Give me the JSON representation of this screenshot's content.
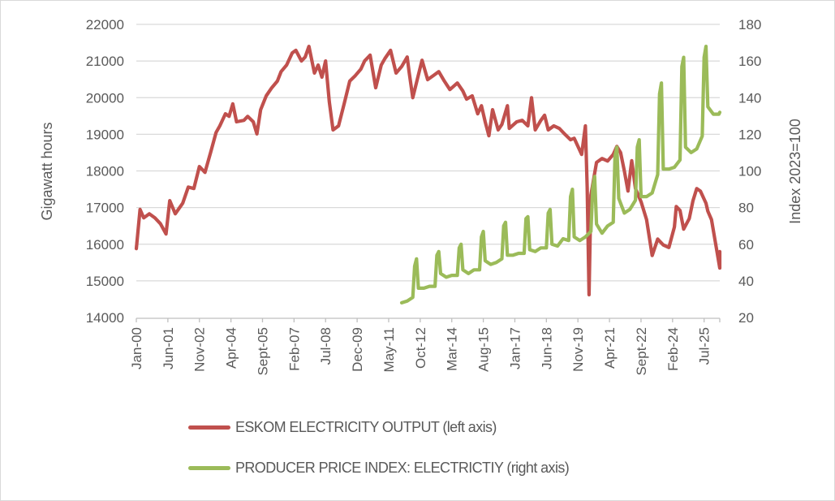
{
  "chart_data": {
    "type": "line",
    "title": "",
    "ylabel": "Gigawatt hours",
    "y2label": "Index 2023=100",
    "ylim": [
      14000,
      22000
    ],
    "y2lim": [
      20,
      180
    ],
    "yticks": [
      "14000",
      "15000",
      "16000",
      "17000",
      "18000",
      "19000",
      "20000",
      "21000",
      "22000"
    ],
    "y2ticks": [
      "20",
      "40",
      "60",
      "80",
      "100",
      "120",
      "140",
      "160",
      "180"
    ],
    "xlim": [
      "2000-01",
      "2025-11"
    ],
    "xticks": [
      {
        "date": "2000-01",
        "label": "Jan-00"
      },
      {
        "date": "2001-06",
        "label": "Jun-01"
      },
      {
        "date": "2002-11",
        "label": "Nov-02"
      },
      {
        "date": "2004-04",
        "label": "Apr-04"
      },
      {
        "date": "2005-09",
        "label": "Sept-05"
      },
      {
        "date": "2007-02",
        "label": "Feb-07"
      },
      {
        "date": "2008-07",
        "label": "Jul-08"
      },
      {
        "date": "2009-12",
        "label": "Dec-09"
      },
      {
        "date": "2011-05",
        "label": "May-11"
      },
      {
        "date": "2012-10",
        "label": "Oct-12"
      },
      {
        "date": "2014-03",
        "label": "Mar-14"
      },
      {
        "date": "2015-08",
        "label": "Aug-15"
      },
      {
        "date": "2017-01",
        "label": "Jan-17"
      },
      {
        "date": "2018-06",
        "label": "Jun-18"
      },
      {
        "date": "2019-11",
        "label": "Nov-19"
      },
      {
        "date": "2021-04",
        "label": "Apr-21"
      },
      {
        "date": "2022-09",
        "label": "Sept-22"
      },
      {
        "date": "2024-02",
        "label": "Feb-24"
      },
      {
        "date": "2025-07",
        "label": "Jul-25"
      }
    ],
    "grid": true,
    "legend_position": "bottom",
    "series": [
      {
        "name": "ESKOM ELECTRICITY OUTPUT (left axis)",
        "axis": "left",
        "color": "#c0504d",
        "points": [
          [
            "2000-01",
            15880
          ],
          [
            "2000-03",
            16950
          ],
          [
            "2000-05",
            16720
          ],
          [
            "2000-08",
            16830
          ],
          [
            "2000-11",
            16720
          ],
          [
            "2001-02",
            16560
          ],
          [
            "2001-05",
            16280
          ],
          [
            "2001-07",
            17190
          ],
          [
            "2001-10",
            16830
          ],
          [
            "2002-02",
            17120
          ],
          [
            "2002-05",
            17560
          ],
          [
            "2002-08",
            17520
          ],
          [
            "2002-11",
            18120
          ],
          [
            "2003-02",
            17960
          ],
          [
            "2003-05",
            18500
          ],
          [
            "2003-08",
            19050
          ],
          [
            "2003-10",
            19230
          ],
          [
            "2004-01",
            19560
          ],
          [
            "2004-03",
            19490
          ],
          [
            "2004-05",
            19830
          ],
          [
            "2004-07",
            19340
          ],
          [
            "2004-11",
            19380
          ],
          [
            "2005-01",
            19490
          ],
          [
            "2005-04",
            19340
          ],
          [
            "2005-06",
            19010
          ],
          [
            "2005-08",
            19670
          ],
          [
            "2005-11",
            20050
          ],
          [
            "2006-02",
            20270
          ],
          [
            "2006-05",
            20450
          ],
          [
            "2006-07",
            20710
          ],
          [
            "2006-10",
            20890
          ],
          [
            "2007-01",
            21220
          ],
          [
            "2007-03",
            21290
          ],
          [
            "2007-06",
            21000
          ],
          [
            "2007-08",
            21110
          ],
          [
            "2007-10",
            21400
          ],
          [
            "2008-01",
            20670
          ],
          [
            "2008-03",
            20890
          ],
          [
            "2008-05",
            20560
          ],
          [
            "2008-07",
            21000
          ],
          [
            "2008-09",
            19890
          ],
          [
            "2008-11",
            19120
          ],
          [
            "2009-02",
            19230
          ],
          [
            "2009-05",
            19830
          ],
          [
            "2009-08",
            20450
          ],
          [
            "2009-11",
            20600
          ],
          [
            "2010-02",
            20780
          ],
          [
            "2010-04",
            21000
          ],
          [
            "2010-07",
            21160
          ],
          [
            "2010-10",
            20270
          ],
          [
            "2011-01",
            20890
          ],
          [
            "2011-03",
            21070
          ],
          [
            "2011-06",
            21290
          ],
          [
            "2011-09",
            20670
          ],
          [
            "2011-12",
            20850
          ],
          [
            "2012-03",
            21110
          ],
          [
            "2012-04",
            20710
          ],
          [
            "2012-06",
            20000
          ],
          [
            "2012-09",
            20620
          ],
          [
            "2012-11",
            21020
          ],
          [
            "2013-02",
            20490
          ],
          [
            "2013-05",
            20600
          ],
          [
            "2013-08",
            20710
          ],
          [
            "2013-11",
            20450
          ],
          [
            "2014-02",
            20220
          ],
          [
            "2014-06",
            20400
          ],
          [
            "2014-09",
            20180
          ],
          [
            "2014-11",
            19960
          ],
          [
            "2015-02",
            20050
          ],
          [
            "2015-05",
            19560
          ],
          [
            "2015-07",
            19780
          ],
          [
            "2015-09",
            19340
          ],
          [
            "2015-11",
            18960
          ],
          [
            "2016-01",
            19670
          ],
          [
            "2016-04",
            19120
          ],
          [
            "2016-06",
            19270
          ],
          [
            "2016-09",
            19780
          ],
          [
            "2016-10",
            19160
          ],
          [
            "2017-02",
            19340
          ],
          [
            "2017-05",
            19380
          ],
          [
            "2017-08",
            19230
          ],
          [
            "2017-10",
            20000
          ],
          [
            "2017-12",
            19120
          ],
          [
            "2018-03",
            19380
          ],
          [
            "2018-05",
            19520
          ],
          [
            "2018-07",
            19120
          ],
          [
            "2018-10",
            19230
          ],
          [
            "2019-01",
            19160
          ],
          [
            "2019-04",
            19000
          ],
          [
            "2019-07",
            18850
          ],
          [
            "2019-09",
            18890
          ],
          [
            "2019-11",
            18670
          ],
          [
            "2020-01",
            18450
          ],
          [
            "2020-03",
            19230
          ],
          [
            "2020-04",
            17560
          ],
          [
            "2020-05",
            14620
          ],
          [
            "2020-06",
            17340
          ],
          [
            "2020-09",
            18230
          ],
          [
            "2020-12",
            18340
          ],
          [
            "2021-03",
            18270
          ],
          [
            "2021-06",
            18450
          ],
          [
            "2021-08",
            18670
          ],
          [
            "2021-10",
            18500
          ],
          [
            "2021-12",
            18000
          ],
          [
            "2022-02",
            17450
          ],
          [
            "2022-04",
            18280
          ],
          [
            "2022-06",
            17520
          ],
          [
            "2022-09",
            17160
          ],
          [
            "2022-12",
            16670
          ],
          [
            "2023-03",
            15690
          ],
          [
            "2023-06",
            16140
          ],
          [
            "2023-09",
            15980
          ],
          [
            "2023-12",
            15910
          ],
          [
            "2024-03",
            16470
          ],
          [
            "2024-04",
            17030
          ],
          [
            "2024-06",
            16920
          ],
          [
            "2024-08",
            16410
          ],
          [
            "2024-11",
            16700
          ],
          [
            "2025-01",
            17190
          ],
          [
            "2025-03",
            17520
          ],
          [
            "2025-05",
            17450
          ],
          [
            "2025-08",
            17120
          ],
          [
            "2025-09",
            16900
          ],
          [
            "2025-11",
            16670
          ],
          [
            "2026-02",
            15780
          ],
          [
            "2026-04",
            15350
          ],
          [
            "2026-06",
            15800
          ]
        ]
      },
      {
        "name": "PRODUCER PRICE INDEX: ELECTRICTIY (right axis)",
        "axis": "right",
        "color": "#9bbb59",
        "points": [
          [
            "2011-12",
            28
          ],
          [
            "2012-03",
            29
          ],
          [
            "2012-06",
            31
          ],
          [
            "2012-07",
            48
          ],
          [
            "2012-08",
            52
          ],
          [
            "2012-09",
            36
          ],
          [
            "2012-12",
            36
          ],
          [
            "2013-03",
            37
          ],
          [
            "2013-06",
            37
          ],
          [
            "2013-07",
            54
          ],
          [
            "2013-08",
            56
          ],
          [
            "2013-09",
            44
          ],
          [
            "2013-12",
            42
          ],
          [
            "2014-03",
            43
          ],
          [
            "2014-06",
            43
          ],
          [
            "2014-07",
            58
          ],
          [
            "2014-08",
            60
          ],
          [
            "2014-09",
            46
          ],
          [
            "2014-12",
            44
          ],
          [
            "2015-03",
            46
          ],
          [
            "2015-06",
            46
          ],
          [
            "2015-07",
            64
          ],
          [
            "2015-08",
            67
          ],
          [
            "2015-09",
            51
          ],
          [
            "2015-12",
            49
          ],
          [
            "2016-03",
            50
          ],
          [
            "2016-06",
            52
          ],
          [
            "2016-07",
            70
          ],
          [
            "2016-08",
            72
          ],
          [
            "2016-09",
            54
          ],
          [
            "2016-12",
            54
          ],
          [
            "2017-03",
            55
          ],
          [
            "2017-06",
            55
          ],
          [
            "2017-07",
            74
          ],
          [
            "2017-08",
            75
          ],
          [
            "2017-09",
            57
          ],
          [
            "2017-12",
            56
          ],
          [
            "2018-03",
            58
          ],
          [
            "2018-06",
            58
          ],
          [
            "2018-07",
            77
          ],
          [
            "2018-08",
            79
          ],
          [
            "2018-09",
            60
          ],
          [
            "2018-12",
            59
          ],
          [
            "2019-03",
            63
          ],
          [
            "2019-06",
            62
          ],
          [
            "2019-07",
            86
          ],
          [
            "2019-08",
            90
          ],
          [
            "2019-09",
            64
          ],
          [
            "2019-12",
            62
          ],
          [
            "2020-03",
            64
          ],
          [
            "2020-06",
            67
          ],
          [
            "2020-07",
            91
          ],
          [
            "2020-08",
            97
          ],
          [
            "2020-09",
            71
          ],
          [
            "2020-12",
            66
          ],
          [
            "2021-03",
            70
          ],
          [
            "2021-06",
            72
          ],
          [
            "2021-07",
            108
          ],
          [
            "2021-08",
            113
          ],
          [
            "2021-09",
            85
          ],
          [
            "2021-12",
            77
          ],
          [
            "2022-03",
            79
          ],
          [
            "2022-06",
            84
          ],
          [
            "2022-07",
            113
          ],
          [
            "2022-08",
            117
          ],
          [
            "2022-09",
            86
          ],
          [
            "2022-12",
            86
          ],
          [
            "2023-03",
            88
          ],
          [
            "2023-06",
            98
          ],
          [
            "2023-07",
            142
          ],
          [
            "2023-08",
            148
          ],
          [
            "2023-09",
            101
          ],
          [
            "2023-12",
            101
          ],
          [
            "2024-03",
            102
          ],
          [
            "2024-06",
            106
          ],
          [
            "2024-07",
            157
          ],
          [
            "2024-08",
            162
          ],
          [
            "2024-09",
            113
          ],
          [
            "2024-12",
            110
          ],
          [
            "2025-03",
            112
          ],
          [
            "2025-06",
            119
          ],
          [
            "2025-07",
            162
          ],
          [
            "2025-08",
            168
          ],
          [
            "2025-09",
            135
          ],
          [
            "2025-12",
            131
          ],
          [
            "2026-03",
            131
          ],
          [
            "2026-06",
            132
          ]
        ]
      }
    ]
  }
}
